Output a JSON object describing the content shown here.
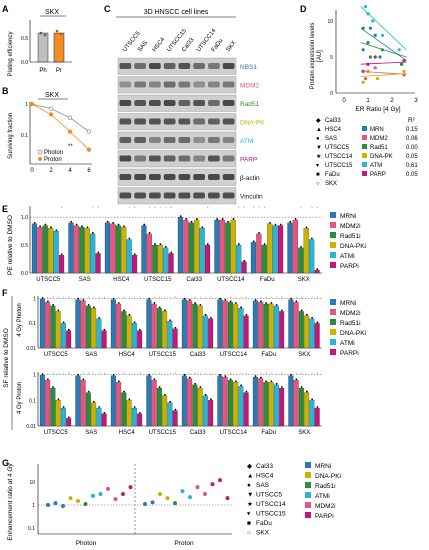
{
  "panels": {
    "A": {
      "letter": "A",
      "title": "SKX",
      "ylabel": "Plating efficiency",
      "yticks": [
        "0.0",
        "0.5"
      ],
      "categories": [
        "Ph",
        "Pr"
      ]
    },
    "B": {
      "letter": "B",
      "title": "SKX",
      "ylabel": "Surviving fraction",
      "yticks": [
        "1",
        "0.1"
      ],
      "xticks": [
        "0",
        "2",
        "4",
        "6"
      ],
      "legend": [
        "Photon",
        "Proton"
      ],
      "annotation": "**"
    },
    "C": {
      "letter": "C",
      "title": "3D HNSCC cell lines",
      "lanes": [
        "UTSCC5",
        "SAS",
        "HSC4",
        "UTSCC15",
        "Cal33",
        "UTSCC14",
        "FaDu",
        "SKX"
      ],
      "bands": [
        "NBS1",
        "MDM2",
        "Rad51",
        "DNA-PK",
        "ATM",
        "PARP",
        "β-actin",
        "Vinculin"
      ]
    },
    "D": {
      "letter": "D",
      "ylabel_line1": "Protein expression levels",
      "ylabel_line2": "[AU]",
      "xlabel": "ER Ratio [4 Gy]",
      "xticks": [
        "0",
        "1",
        "2",
        "3"
      ],
      "yticks": [
        "0",
        "5",
        "10"
      ],
      "r2_header": "R²",
      "r2_rows": [
        {
          "name": "MRN",
          "value": "0.15"
        },
        {
          "name": "MDM2",
          "value": "0.06"
        },
        {
          "name": "Rad51",
          "value": "0.00"
        },
        {
          "name": "DNA-PK",
          "value": "0.05"
        },
        {
          "name": "ATM",
          "value": "0.61"
        },
        {
          "name": "PARP",
          "value": "0.05"
        }
      ],
      "cell_lines": [
        "Cal33",
        "HSC4",
        "SAS",
        "UTSCC5",
        "UTSCC14",
        "UTSCC15",
        "FaDu",
        "SKX"
      ]
    },
    "E": {
      "letter": "E",
      "ylabel": "PE relative to DMSO",
      "yticks": [
        "0.0",
        "0.5",
        "1.0"
      ]
    },
    "F": {
      "letter": "F",
      "ylabel": "SF relative to DMSO",
      "sub1": "4 Gy Photon",
      "sub2": "4 Gy Proton",
      "yticks": [
        "0.01",
        "0.1",
        "1"
      ]
    },
    "G": {
      "letter": "G",
      "ylabel": "Enhancement ratio at 4 Gy",
      "xcats": [
        "Photon",
        "Proton"
      ],
      "yticks": [
        "0.1",
        "1",
        "10"
      ],
      "cell_lines": [
        "Cal33",
        "HSC4",
        "SAS",
        "UTSCC5",
        "UTSCC14",
        "UTSCC15",
        "FaDu",
        "SKX"
      ]
    }
  },
  "cell_lines": [
    "UTSCC5",
    "SAS",
    "HSC4",
    "UTSCC15",
    "Cal33",
    "UTSCC14",
    "FaDu",
    "SKX"
  ],
  "inhibitors": [
    {
      "name": "MRNi",
      "color": "#2e79b5"
    },
    {
      "name": "MDM2i",
      "color": "#e75480"
    },
    {
      "name": "Rad51i",
      "color": "#2e8b3a"
    },
    {
      "name": "DNA-PKi",
      "color": "#c8b400"
    },
    {
      "name": "ATMi",
      "color": "#28b5d8"
    },
    {
      "name": "PARPi",
      "color": "#c2187a"
    }
  ],
  "proteins": [
    {
      "name": "MRN",
      "color": "#2e79b5"
    },
    {
      "name": "MDM2",
      "color": "#e75480"
    },
    {
      "name": "Rad51",
      "color": "#2e8b3a"
    },
    {
      "name": "DNA-PK",
      "color": "#c8b400"
    },
    {
      "name": "ATM",
      "color": "#28b5d8"
    },
    {
      "name": "PARP",
      "color": "#c2187a"
    }
  ],
  "g_legend_inhibitors": [
    "MRNi",
    "DNA-PKi",
    "Rad51i",
    "ATMi",
    "MDM2i",
    "PARPi"
  ],
  "chart_data": [
    {
      "panel": "A",
      "type": "bar",
      "categories": [
        "Ph",
        "Pr"
      ],
      "values": [
        0.6,
        0.6
      ],
      "ylim": [
        0,
        0.8
      ],
      "title": "SKX",
      "ylabel": "Plating efficiency"
    },
    {
      "panel": "B",
      "type": "line",
      "x": [
        0,
        2,
        4,
        6
      ],
      "ylim": [
        0.01,
        1
      ],
      "title": "SKX",
      "ylabel": "Surviving fraction",
      "series": [
        {
          "name": "Photon",
          "values": [
            1,
            0.7,
            0.35,
            0.12
          ]
        },
        {
          "name": "Proton",
          "values": [
            1,
            0.45,
            0.12,
            0.03
          ]
        }
      ]
    },
    {
      "panel": "E",
      "type": "bar",
      "categories": [
        "UTSCC5",
        "SAS",
        "HSC4",
        "UTSCC15",
        "Cal33",
        "UTSCC14",
        "FaDu",
        "SKX"
      ],
      "ylabel": "PE relative to DMSO",
      "ylim": [
        0,
        1.2
      ],
      "series": [
        {
          "name": "MRNi",
          "values": [
            0.88,
            0.9,
            0.9,
            0.85,
            1.0,
            0.95,
            0.55,
            0.9
          ]
        },
        {
          "name": "MDM2i",
          "values": [
            0.82,
            0.85,
            0.88,
            0.7,
            0.95,
            0.95,
            0.7,
            0.95
          ]
        },
        {
          "name": "Rad51i",
          "values": [
            0.85,
            0.82,
            0.85,
            0.5,
            0.9,
            0.9,
            0.5,
            0.45
          ]
        },
        {
          "name": "DNA-PKi",
          "values": [
            0.8,
            0.8,
            0.82,
            0.5,
            0.95,
            0.95,
            0.88,
            0.8
          ]
        },
        {
          "name": "ATMi",
          "values": [
            0.75,
            0.7,
            0.6,
            0.45,
            0.8,
            0.5,
            0.85,
            0.6
          ]
        },
        {
          "name": "PARPi",
          "values": [
            0.32,
            0.35,
            0.32,
            0.35,
            0.5,
            0.2,
            0.85,
            0.05
          ]
        }
      ]
    },
    {
      "panel": "F-photon",
      "type": "bar",
      "categories": [
        "UTSCC5",
        "SAS",
        "HSC4",
        "UTSCC15",
        "Cal33",
        "UTSCC14",
        "FaDu",
        "SKX"
      ],
      "ylabel": "4 Gy Photon",
      "ylim": [
        0.01,
        1
      ],
      "log": true,
      "series": [
        {
          "name": "MRNi",
          "values": [
            0.95,
            0.9,
            0.9,
            0.9,
            0.9,
            0.9,
            0.8,
            0.9
          ]
        },
        {
          "name": "MDM2i",
          "values": [
            0.7,
            0.8,
            0.6,
            0.6,
            0.8,
            0.8,
            0.7,
            0.7
          ]
        },
        {
          "name": "Rad51i",
          "values": [
            0.5,
            0.5,
            0.3,
            0.4,
            0.6,
            0.7,
            0.6,
            0.3
          ]
        },
        {
          "name": "DNA-PKi",
          "values": [
            0.3,
            0.4,
            0.2,
            0.3,
            0.5,
            0.6,
            0.6,
            0.2
          ]
        },
        {
          "name": "ATMi",
          "values": [
            0.1,
            0.15,
            0.1,
            0.12,
            0.2,
            0.4,
            0.5,
            0.15
          ]
        },
        {
          "name": "PARPi",
          "values": [
            0.05,
            0.05,
            0.05,
            0.06,
            0.15,
            0.2,
            0.3,
            0.1
          ]
        }
      ]
    },
    {
      "panel": "F-proton",
      "type": "bar",
      "categories": [
        "UTSCC5",
        "SAS",
        "HSC4",
        "UTSCC15",
        "Cal33",
        "UTSCC14",
        "FaDu",
        "SKX"
      ],
      "ylabel": "4 Gy Proton",
      "ylim": [
        0.01,
        1
      ],
      "log": true,
      "series": [
        {
          "name": "MRNi",
          "values": [
            0.95,
            0.9,
            0.9,
            0.9,
            0.9,
            0.9,
            0.8,
            0.9
          ]
        },
        {
          "name": "MDM2i",
          "values": [
            0.6,
            0.6,
            0.5,
            0.6,
            0.7,
            0.8,
            0.7,
            0.6
          ]
        },
        {
          "name": "Rad51i",
          "values": [
            0.3,
            0.2,
            0.2,
            0.3,
            0.4,
            0.6,
            0.5,
            0.3
          ]
        },
        {
          "name": "DNA-PKi",
          "values": [
            0.1,
            0.08,
            0.1,
            0.15,
            0.3,
            0.5,
            0.5,
            0.2
          ]
        },
        {
          "name": "ATMi",
          "values": [
            0.05,
            0.05,
            0.05,
            0.08,
            0.15,
            0.35,
            0.4,
            0.1
          ]
        },
        {
          "name": "PARPi",
          "values": [
            0.02,
            0.03,
            0.03,
            0.04,
            0.1,
            0.2,
            0.3,
            0.05
          ]
        }
      ]
    }
  ]
}
